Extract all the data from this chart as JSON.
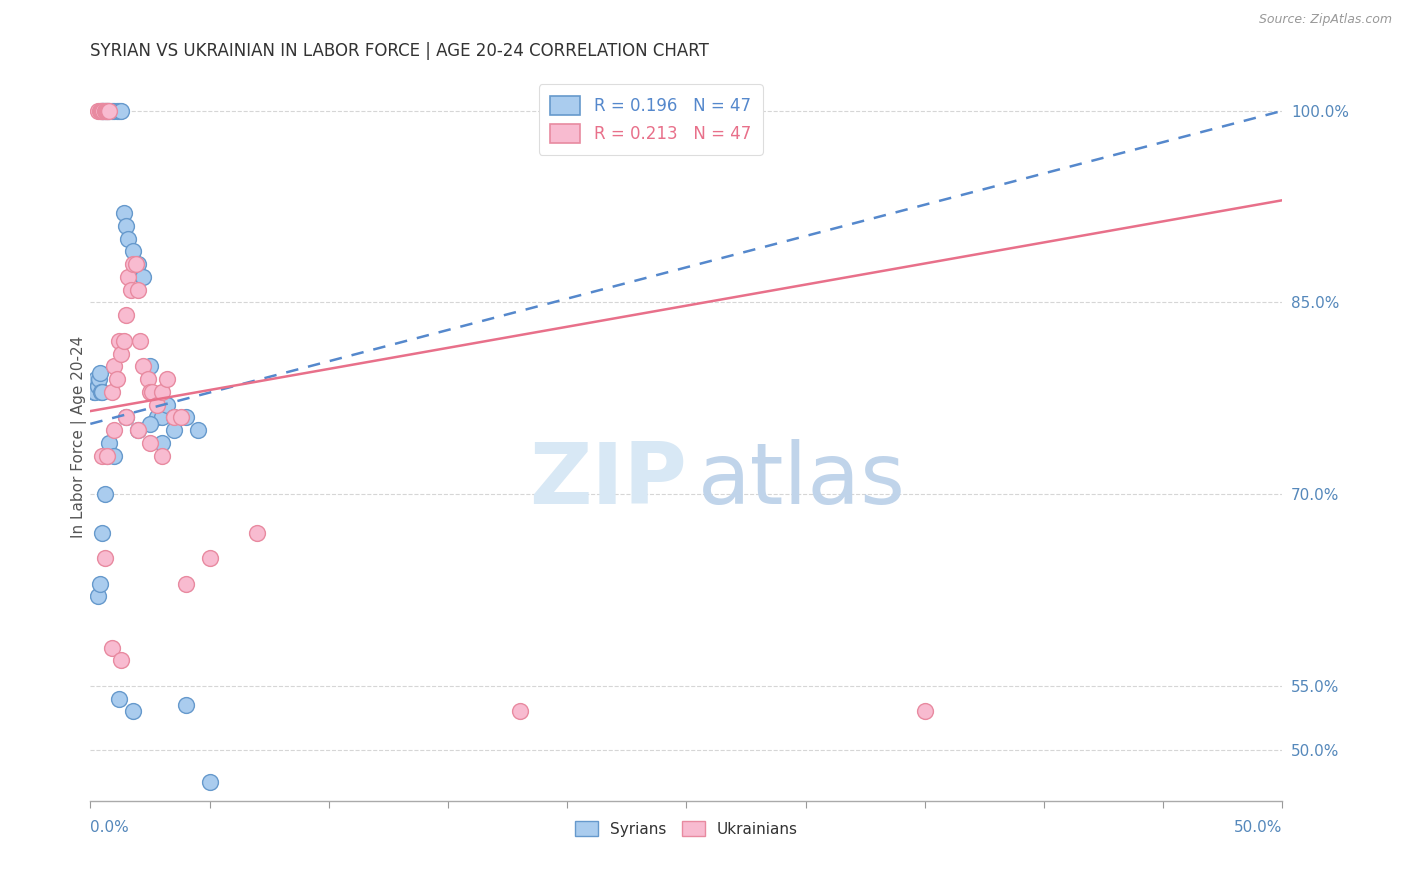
{
  "title": "SYRIAN VS UKRAINIAN IN LABOR FORCE | AGE 20-24 CORRELATION CHART",
  "source": "Source: ZipAtlas.com",
  "ylabel": "In Labor Force | Age 20-24",
  "xlim": [
    0.0,
    50.0
  ],
  "ylim": [
    46.0,
    103.0
  ],
  "ytick_vals": [
    50.0,
    55.0,
    70.0,
    85.0,
    100.0
  ],
  "ytick_labels": [
    "50.0%",
    "55.0%",
    "70.0%",
    "85.0%",
    "100.0%"
  ],
  "syrians_R": "0.196",
  "syrians_N": "47",
  "ukrainians_R": "0.213",
  "ukrainians_N": "47",
  "syrian_fill": "#aaccee",
  "syrian_edge": "#6699cc",
  "ukrainian_fill": "#f8bbd0",
  "ukrainian_edge": "#e88aa0",
  "trend_syrian_color": "#5588cc",
  "trend_ukrainian_color": "#e8708a",
  "grid_color": "#cccccc",
  "axis_label_color": "#5588bb",
  "title_color": "#333333",
  "source_color": "#999999",
  "ylabel_color": "#555555",
  "watermark_zip_color": "#d8e8f5",
  "watermark_atlas_color": "#c0d4ea",
  "syr_x": [
    0.15,
    0.2,
    0.25,
    0.3,
    0.35,
    0.4,
    0.45,
    0.5,
    0.5,
    0.55,
    0.6,
    0.7,
    0.8,
    0.9,
    1.0,
    1.1,
    1.2,
    1.3,
    1.4,
    1.5,
    1.6,
    1.8,
    2.0,
    2.2,
    2.5,
    2.8,
    3.0,
    3.2,
    3.5,
    4.0,
    4.5,
    0.3,
    0.4,
    0.5,
    0.6,
    0.7,
    0.8,
    1.0,
    1.5,
    2.0,
    3.0,
    4.0,
    1.2,
    1.8,
    2.5,
    3.5,
    5.0
  ],
  "syr_y": [
    78.0,
    78.0,
    79.0,
    78.5,
    79.0,
    79.5,
    78.0,
    78.0,
    100.0,
    100.0,
    100.0,
    100.0,
    100.0,
    100.0,
    100.0,
    100.0,
    100.0,
    100.0,
    92.0,
    91.0,
    90.0,
    89.0,
    88.0,
    87.0,
    80.0,
    76.0,
    76.0,
    77.0,
    76.0,
    76.0,
    75.0,
    62.0,
    63.0,
    67.0,
    70.0,
    73.0,
    74.0,
    73.0,
    76.0,
    75.0,
    74.0,
    53.5,
    54.0,
    53.0,
    75.5,
    75.0,
    47.5
  ],
  "ukr_x": [
    0.3,
    0.4,
    0.45,
    0.5,
    0.55,
    0.6,
    0.65,
    0.7,
    0.75,
    0.8,
    0.9,
    1.0,
    1.1,
    1.2,
    1.3,
    1.4,
    1.5,
    1.6,
    1.7,
    1.8,
    1.9,
    2.0,
    2.1,
    2.2,
    2.4,
    2.5,
    2.6,
    2.8,
    3.0,
    3.2,
    3.5,
    3.8,
    0.5,
    0.7,
    1.0,
    1.5,
    2.0,
    2.5,
    3.0,
    4.0,
    5.0,
    7.0,
    18.0,
    35.0,
    0.6,
    0.9,
    1.3
  ],
  "ukr_y": [
    100.0,
    100.0,
    100.0,
    100.0,
    100.0,
    100.0,
    100.0,
    100.0,
    100.0,
    100.0,
    78.0,
    80.0,
    79.0,
    82.0,
    81.0,
    82.0,
    84.0,
    87.0,
    86.0,
    88.0,
    88.0,
    86.0,
    82.0,
    80.0,
    79.0,
    78.0,
    78.0,
    77.0,
    78.0,
    79.0,
    76.0,
    76.0,
    73.0,
    73.0,
    75.0,
    76.0,
    75.0,
    74.0,
    73.0,
    63.0,
    65.0,
    67.0,
    53.0,
    53.0,
    65.0,
    58.0,
    57.0
  ],
  "syr_trend_x0": 0.0,
  "syr_trend_x1": 50.0,
  "syr_trend_y0": 75.5,
  "syr_trend_y1": 100.0,
  "ukr_trend_x0": 0.0,
  "ukr_trend_x1": 50.0,
  "ukr_trend_y0": 76.5,
  "ukr_trend_y1": 93.0
}
